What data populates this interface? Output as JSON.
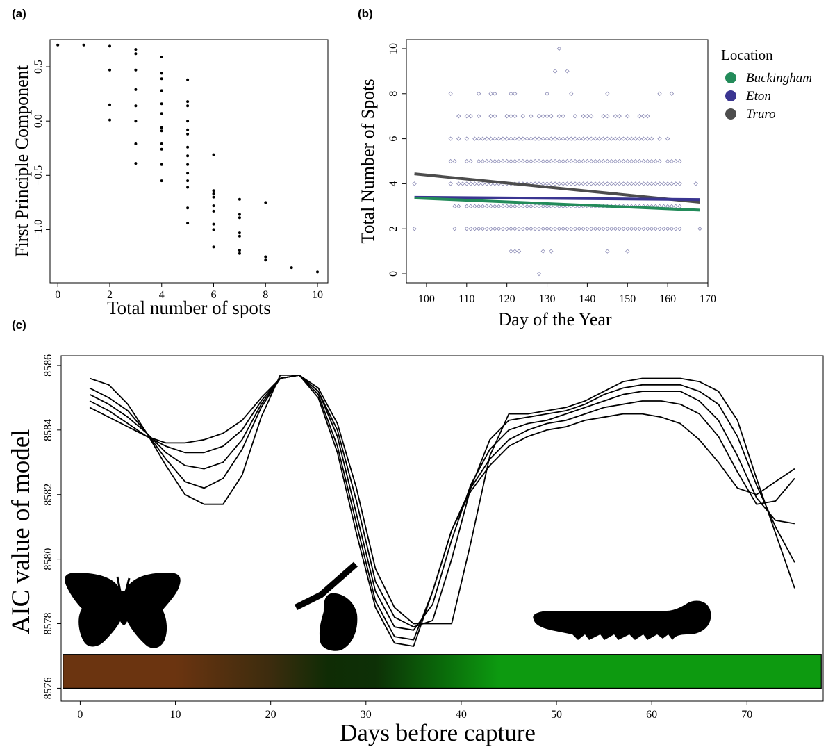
{
  "panels": {
    "a": "(a)",
    "b": "(b)",
    "c": "(c)"
  },
  "chart_data": [
    {
      "panel": "(a)",
      "type": "scatter",
      "xlabel": "Total number of spots",
      "ylabel": "First Principle Component",
      "xlim": [
        -0.3,
        10.4
      ],
      "ylim": [
        -1.49,
        0.75
      ],
      "xticks": [
        0,
        2,
        4,
        6,
        8,
        10
      ],
      "yticks": [
        0.5,
        0.0,
        -0.5,
        -1.0
      ],
      "ytick_labels": [
        "0.5",
        "0.0",
        "−0.5",
        "−1.0"
      ],
      "points": [
        [
          0,
          0.7
        ],
        [
          1,
          0.7
        ],
        [
          2,
          0.69
        ],
        [
          2,
          0.47
        ],
        [
          2,
          0.15
        ],
        [
          2,
          0.01
        ],
        [
          3,
          0.66
        ],
        [
          3,
          0.62
        ],
        [
          3,
          0.47
        ],
        [
          3,
          0.29
        ],
        [
          3,
          0.14
        ],
        [
          3,
          0.0
        ],
        [
          3,
          -0.21
        ],
        [
          3,
          -0.39
        ],
        [
          4,
          0.59
        ],
        [
          4,
          0.44
        ],
        [
          4,
          0.39
        ],
        [
          4,
          0.28
        ],
        [
          4,
          0.16
        ],
        [
          4,
          0.07
        ],
        [
          4,
          -0.06
        ],
        [
          4,
          -0.09
        ],
        [
          4,
          -0.21
        ],
        [
          4,
          -0.26
        ],
        [
          4,
          -0.4
        ],
        [
          4,
          -0.55
        ],
        [
          5,
          0.38
        ],
        [
          5,
          0.18
        ],
        [
          5,
          0.14
        ],
        [
          5,
          0.0
        ],
        [
          5,
          -0.08
        ],
        [
          5,
          -0.12
        ],
        [
          5,
          -0.24
        ],
        [
          5,
          -0.32
        ],
        [
          5,
          -0.4
        ],
        [
          5,
          -0.48
        ],
        [
          5,
          -0.55
        ],
        [
          5,
          -0.61
        ],
        [
          5,
          -0.8
        ],
        [
          5,
          -0.94
        ],
        [
          6,
          -0.31
        ],
        [
          6,
          -0.64
        ],
        [
          6,
          -0.67
        ],
        [
          6,
          -0.7
        ],
        [
          6,
          -0.78
        ],
        [
          6,
          -0.83
        ],
        [
          6,
          -0.95
        ],
        [
          6,
          -1.0
        ],
        [
          6,
          -1.16
        ],
        [
          7,
          -0.72
        ],
        [
          7,
          -0.86
        ],
        [
          7,
          -0.89
        ],
        [
          7,
          -1.03
        ],
        [
          7,
          -1.06
        ],
        [
          7,
          -1.19
        ],
        [
          7,
          -1.22
        ],
        [
          8,
          -0.75
        ],
        [
          8,
          -1.25
        ],
        [
          8,
          -1.28
        ],
        [
          9,
          -1.35
        ],
        [
          10,
          -1.39
        ]
      ]
    },
    {
      "panel": "(b)",
      "type": "scatter",
      "xlabel": "Day of the Year",
      "ylabel": "Total Number of Spots",
      "xlim": [
        95,
        170
      ],
      "ylim": [
        -0.4,
        10.4
      ],
      "xticks": [
        100,
        110,
        120,
        130,
        140,
        150,
        160,
        170
      ],
      "yticks": [
        0,
        2,
        4,
        6,
        8,
        10
      ],
      "legend": {
        "title": "Location",
        "position": "right",
        "entries": [
          {
            "name": "Buckingham",
            "color": "#238b5a"
          },
          {
            "name": "Eton",
            "color": "#3a3591"
          },
          {
            "name": "Truro",
            "color": "#4d4d4d"
          }
        ]
      },
      "point_color": "#8a8ab5",
      "point_rows": [
        {
          "y": 0,
          "days": [
            128
          ]
        },
        {
          "y": 1,
          "days": [
            121,
            122,
            123,
            129,
            131,
            145,
            150
          ]
        },
        {
          "y": 2,
          "days": [
            97,
            107,
            110,
            111,
            112,
            113,
            114,
            115,
            116,
            117,
            118,
            119,
            120,
            121,
            122,
            123,
            124,
            125,
            126,
            127,
            128,
            129,
            130,
            131,
            132,
            133,
            134,
            135,
            136,
            137,
            138,
            139,
            140,
            141,
            142,
            143,
            144,
            145,
            146,
            147,
            148,
            149,
            150,
            151,
            152,
            153,
            154,
            155,
            156,
            157,
            158,
            159,
            160,
            161,
            162,
            163,
            168
          ]
        },
        {
          "y": 3,
          "days": [
            107,
            108,
            110,
            111,
            112,
            113,
            114,
            115,
            116,
            117,
            118,
            119,
            120,
            121,
            122,
            123,
            124,
            125,
            126,
            127,
            128,
            129,
            130,
            131,
            132,
            133,
            134,
            135,
            136,
            137,
            138,
            139,
            140,
            141,
            142,
            143,
            144,
            145,
            146,
            147,
            148,
            149,
            150,
            151,
            152,
            153,
            154,
            155,
            156,
            157,
            158,
            159,
            160,
            161,
            162,
            163
          ]
        },
        {
          "y": 4,
          "days": [
            97,
            106,
            108,
            109,
            110,
            111,
            112,
            113,
            114,
            115,
            116,
            117,
            118,
            119,
            120,
            121,
            122,
            123,
            124,
            125,
            126,
            127,
            128,
            129,
            130,
            131,
            132,
            133,
            134,
            135,
            136,
            137,
            138,
            139,
            140,
            141,
            142,
            143,
            144,
            145,
            146,
            147,
            148,
            149,
            150,
            151,
            152,
            153,
            154,
            155,
            156,
            157,
            158,
            159,
            160,
            161,
            162,
            163,
            167
          ]
        },
        {
          "y": 5,
          "days": [
            106,
            107,
            110,
            111,
            113,
            114,
            115,
            116,
            117,
            118,
            119,
            120,
            121,
            122,
            123,
            124,
            125,
            126,
            127,
            128,
            129,
            130,
            131,
            132,
            133,
            134,
            135,
            136,
            137,
            138,
            139,
            140,
            141,
            142,
            143,
            144,
            145,
            146,
            147,
            148,
            149,
            150,
            151,
            152,
            153,
            154,
            155,
            156,
            157,
            158,
            160,
            161,
            162,
            163
          ]
        },
        {
          "y": 6,
          "days": [
            106,
            108,
            110,
            112,
            113,
            114,
            115,
            116,
            117,
            118,
            119,
            120,
            121,
            122,
            123,
            124,
            125,
            126,
            127,
            128,
            129,
            130,
            131,
            132,
            133,
            134,
            135,
            136,
            137,
            138,
            139,
            140,
            141,
            142,
            143,
            144,
            145,
            146,
            147,
            148,
            149,
            150,
            151,
            152,
            153,
            154,
            155,
            156,
            158,
            160
          ]
        },
        {
          "y": 7,
          "days": [
            108,
            110,
            111,
            113,
            116,
            117,
            120,
            121,
            122,
            124,
            126,
            128,
            129,
            130,
            131,
            133,
            134,
            137,
            139,
            140,
            141,
            144,
            145,
            147,
            148,
            150,
            153,
            154,
            155
          ]
        },
        {
          "y": 8,
          "days": [
            106,
            113,
            116,
            117,
            121,
            122,
            130,
            136,
            145,
            158,
            161
          ]
        },
        {
          "y": 9,
          "days": [
            132,
            135
          ]
        },
        {
          "y": 10,
          "days": [
            133
          ]
        }
      ],
      "trend_lines": [
        {
          "name": "Truro",
          "x": [
            97,
            168
          ],
          "y": [
            4.44,
            3.18
          ]
        },
        {
          "name": "Eton",
          "x": [
            97,
            168
          ],
          "y": [
            3.4,
            3.3
          ]
        },
        {
          "name": "Buckingham",
          "x": [
            97,
            168
          ],
          "y": [
            3.37,
            2.83
          ]
        }
      ]
    },
    {
      "panel": "(c)",
      "type": "line",
      "xlabel": "Days before capture",
      "ylabel": "AIC value of model",
      "xlim": [
        -2,
        78
      ],
      "ylim": [
        8575.6,
        8586.3
      ],
      "xticks": [
        0,
        10,
        20,
        30,
        40,
        50,
        60,
        70
      ],
      "yticks": [
        8576,
        8578,
        8580,
        8582,
        8584,
        8586
      ],
      "x": [
        1,
        3,
        5,
        7,
        9,
        11,
        13,
        15,
        17,
        19,
        21,
        23,
        25,
        27,
        29,
        31,
        33,
        35,
        37,
        39,
        41,
        43,
        45,
        47,
        49,
        51,
        53,
        55,
        57,
        59,
        61,
        63,
        65,
        67,
        69,
        71,
        73,
        75
      ],
      "series": [
        {
          "values": [
            8585.6,
            8585.4,
            8584.8,
            8583.9,
            8582.9,
            8582.0,
            8581.7,
            8581.7,
            8582.6,
            8584.4,
            8585.7,
            8585.7,
            8585.3,
            8584.2,
            8582.2,
            8579.7,
            8578.5,
            8578.0,
            8578.0,
            8578.0,
            8580.5,
            8583.2,
            8584.5,
            8584.5,
            8584.6,
            8584.7,
            8584.9,
            8585.2,
            8585.5,
            8585.6,
            8585.6,
            8585.6,
            8585.5,
            8585.2,
            8584.3,
            8582.5,
            8580.8,
            8579.1
          ]
        },
        {
          "values": [
            8585.3,
            8585.0,
            8584.6,
            8583.9,
            8583.1,
            8582.4,
            8582.2,
            8582.5,
            8583.4,
            8584.7,
            8585.6,
            8585.7,
            8585.2,
            8584.0,
            8581.8,
            8579.3,
            8578.2,
            8577.9,
            8578.1,
            8580.0,
            8582.2,
            8583.7,
            8584.3,
            8584.4,
            8584.5,
            8584.6,
            8584.8,
            8585.1,
            8585.3,
            8585.4,
            8585.4,
            8585.4,
            8585.2,
            8584.8,
            8583.8,
            8582.3,
            8581.0,
            8579.9
          ]
        },
        {
          "values": [
            8585.1,
            8584.8,
            8584.4,
            8583.9,
            8583.3,
            8582.9,
            8582.8,
            8583.0,
            8583.7,
            8584.8,
            8585.6,
            8585.7,
            8585.2,
            8583.8,
            8581.4,
            8579.0,
            8577.9,
            8577.8,
            8578.6,
            8580.6,
            8582.3,
            8583.4,
            8584.0,
            8584.2,
            8584.3,
            8584.5,
            8584.7,
            8584.9,
            8585.1,
            8585.2,
            8585.2,
            8585.2,
            8584.9,
            8584.3,
            8583.2,
            8581.9,
            8581.2,
            8581.1
          ]
        },
        {
          "values": [
            8584.9,
            8584.6,
            8584.2,
            8583.8,
            8583.5,
            8583.3,
            8583.3,
            8583.5,
            8584.0,
            8584.9,
            8585.6,
            8585.7,
            8585.1,
            8583.5,
            8581.1,
            8578.7,
            8577.6,
            8577.5,
            8579.0,
            8580.9,
            8582.2,
            8583.1,
            8583.7,
            8584.0,
            8584.2,
            8584.3,
            8584.5,
            8584.7,
            8584.8,
            8584.9,
            8584.9,
            8584.8,
            8584.5,
            8583.8,
            8582.7,
            8581.7,
            8581.8,
            8582.5
          ]
        },
        {
          "values": [
            8584.7,
            8584.4,
            8584.1,
            8583.8,
            8583.6,
            8583.6,
            8583.7,
            8583.9,
            8584.3,
            8585.0,
            8585.6,
            8585.7,
            8585.0,
            8583.3,
            8580.8,
            8578.5,
            8577.4,
            8577.3,
            8579.0,
            8580.9,
            8582.1,
            8582.9,
            8583.5,
            8583.8,
            8584.0,
            8584.1,
            8584.3,
            8584.4,
            8584.5,
            8584.5,
            8584.4,
            8584.2,
            8583.7,
            8583.0,
            8582.2,
            8582.0,
            8582.4,
            8582.8
          ]
        }
      ],
      "life_stage_bar": {
        "x_range": [
          -1.8,
          77.8
        ],
        "y_range": [
          8576.0,
          8577.05
        ],
        "gradient": [
          {
            "x": 0,
            "color": "#6b3410"
          },
          {
            "x": 10,
            "color": "#6b3410"
          },
          {
            "x": 20,
            "color": "#3c2c0e"
          },
          {
            "x": 26,
            "color": "#0f2c05"
          },
          {
            "x": 31,
            "color": "#0d3006"
          },
          {
            "x": 38,
            "color": "#0a6a0a"
          },
          {
            "x": 44,
            "color": "#0d9a10"
          },
          {
            "x": 78,
            "color": "#0d9a10"
          }
        ]
      },
      "silhouettes": [
        "butterfly-silhouette",
        "chrysalis-silhouette",
        "caterpillar-silhouette"
      ]
    }
  ]
}
